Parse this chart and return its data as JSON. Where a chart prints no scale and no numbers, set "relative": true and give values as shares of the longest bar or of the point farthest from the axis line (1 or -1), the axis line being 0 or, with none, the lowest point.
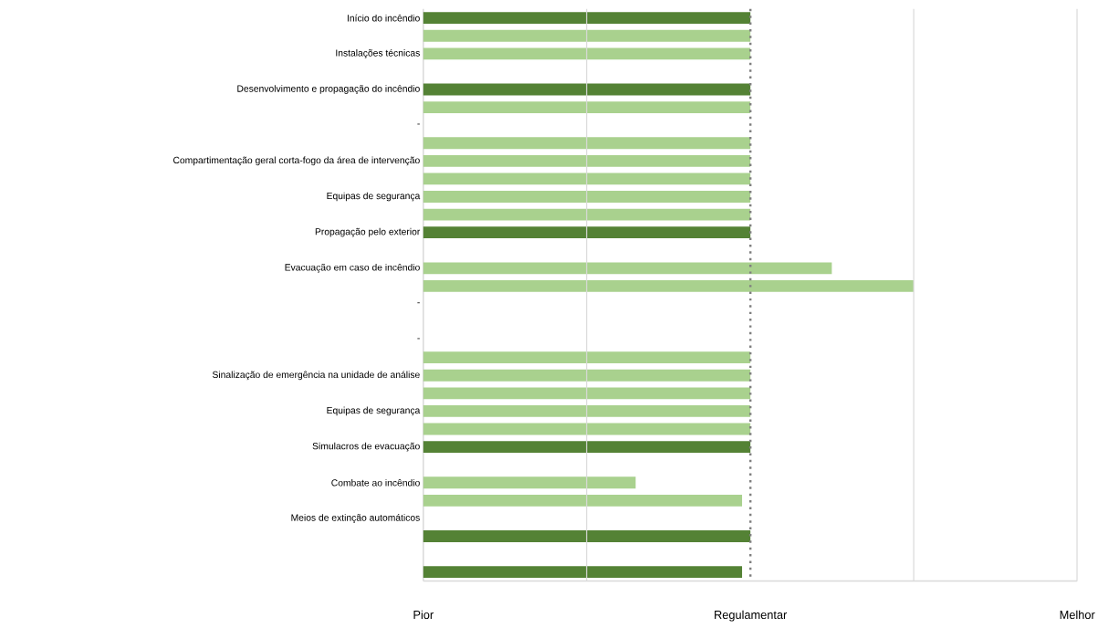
{
  "chart_data": {
    "type": "bar",
    "orientation": "horizontal",
    "relative": true,
    "categories": [
      "Início do incêndio",
      null,
      "Instalações técnicas",
      null,
      "Desenvolvimento e propagação do incêndio",
      null,
      "-",
      null,
      "Compartimentação geral corta-fogo da área de intervenção",
      null,
      "Equipas de segurança",
      null,
      "Propagação pelo exterior",
      null,
      "Evacuação em caso de incêndio",
      null,
      "-",
      null,
      "-",
      null,
      "Sinalização de emergência na unidade de análise",
      null,
      "Equipas de segurança",
      null,
      "Simulacros de evacuação",
      null,
      "Combate ao incêndio",
      null,
      "Meios de extinção automáticos",
      null,
      null,
      null
    ],
    "values": [
      0.667,
      0.667,
      0.667,
      null,
      0.667,
      0.667,
      null,
      0.667,
      0.667,
      0.667,
      0.667,
      0.667,
      0.667,
      null,
      0.833,
      1,
      null,
      null,
      null,
      0.667,
      0.667,
      0.667,
      0.667,
      0.667,
      0.667,
      null,
      0.433,
      0.65,
      null,
      0.667,
      null,
      0.65
    ],
    "colors": [
      "#548235",
      "#a9d18e",
      "#a9d18e",
      null,
      "#548235",
      "#a9d18e",
      null,
      "#a9d18e",
      "#a9d18e",
      "#a9d18e",
      "#a9d18e",
      "#a9d18e",
      "#548235",
      null,
      "#a9d18e",
      "#a9d18e",
      null,
      null,
      null,
      "#a9d18e",
      "#a9d18e",
      "#a9d18e",
      "#a9d18e",
      "#a9d18e",
      "#548235",
      null,
      "#a9d18e",
      "#a9d18e",
      null,
      "#548235",
      null,
      "#548235"
    ],
    "ref_lines": [
      {
        "axis": "x",
        "value": 0.333,
        "color": "#d9d9d9",
        "line_style": "solid"
      },
      {
        "axis": "x",
        "value": 1,
        "color": "#d9d9d9",
        "line_style": "solid"
      },
      {
        "axis": "x",
        "value": 1.333,
        "color": "#d9d9d9",
        "line_style": "solid"
      },
      {
        "axis": "x",
        "value": 0.667,
        "label": "Regulamentar",
        "color": "#7f7f7f",
        "line_style": "dotted"
      }
    ],
    "annotations": [
      "Pior",
      "Melhor"
    ]
  }
}
